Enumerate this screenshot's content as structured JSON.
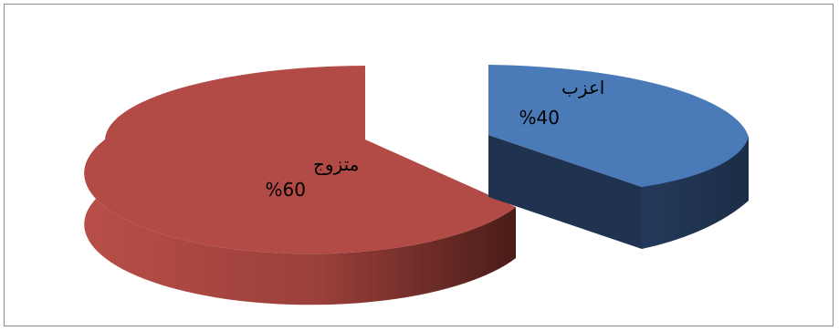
{
  "chart_data": {
    "type": "pie",
    "style": "3d",
    "slices": [
      {
        "label": "اعزب",
        "value": 40,
        "value_text": "%40",
        "color": "#4a7ab8",
        "side_color": "#1f3350"
      },
      {
        "label": "متزوج",
        "value": 60,
        "value_text": "%60",
        "color": "#b24a45",
        "side_color": "#5a2420"
      }
    ],
    "exploded": true,
    "legend": "none"
  }
}
